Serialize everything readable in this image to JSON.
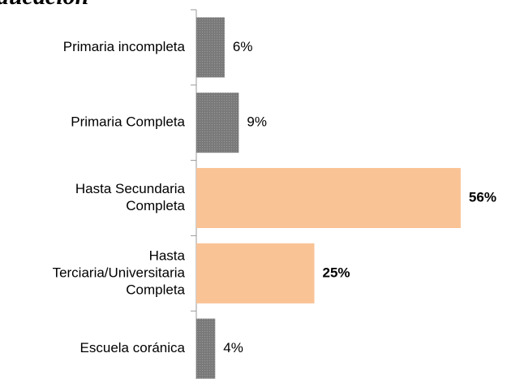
{
  "chart_data": {
    "type": "bar",
    "orientation": "horizontal",
    "title": "ducación",
    "categories": [
      [
        "Primaria incompleta"
      ],
      [
        "Primaria Completa"
      ],
      [
        "Hasta Secundaria",
        "Completa"
      ],
      [
        "Hasta",
        "Terciaria/Universitaria",
        "Completa"
      ],
      [
        "Escuela coránica"
      ]
    ],
    "values": [
      6,
      9,
      56,
      25,
      4
    ],
    "value_labels": [
      "6%",
      "9%",
      "56%",
      "25%",
      "4%"
    ],
    "colors": [
      "#808080",
      "#808080",
      "#f9c396",
      "#f9c396",
      "#808080"
    ],
    "bold_labels": [
      false,
      false,
      true,
      true,
      false
    ]
  }
}
